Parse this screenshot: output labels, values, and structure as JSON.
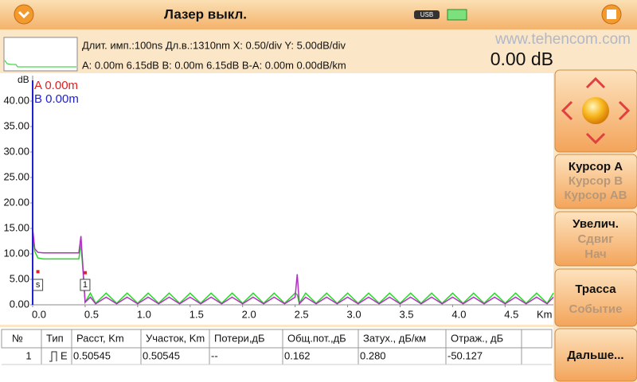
{
  "header": {
    "title": "Лазер выкл.",
    "usb": "USB"
  },
  "watermark": "www.tehencom.com",
  "info": {
    "line1": "Длит. имп.:100ns Дл.в.:1310nm  X: 0.50/div Y: 5.00dB/div",
    "line2": "A: 0.00m 6.15dB B: 0.00m 6.15dB B-A: 0.00m 0.00dB/km",
    "reading": "0.00 dB"
  },
  "chart_data": {
    "type": "line",
    "y_label": "dB",
    "x_label": "Km",
    "xlim": [
      0,
      4.96
    ],
    "ylim": [
      0,
      45
    ],
    "xticks": [
      {
        "value": 0,
        "label": "0.0"
      },
      {
        "value": 0.5,
        "label": "0.5"
      },
      {
        "value": 1,
        "label": "1.0"
      },
      {
        "value": 1.5,
        "label": "1.5"
      },
      {
        "value": 2,
        "label": "2.0"
      },
      {
        "value": 2.5,
        "label": "2.5"
      },
      {
        "value": 3,
        "label": "3.0"
      },
      {
        "value": 3.5,
        "label": "3.5"
      },
      {
        "value": 4,
        "label": "4.0"
      },
      {
        "value": 4.5,
        "label": "4.5"
      }
    ],
    "yticks": [
      {
        "value": 0,
        "label": "0.00"
      },
      {
        "value": 5,
        "label": "5.00"
      },
      {
        "value": 10,
        "label": "10.00"
      },
      {
        "value": 15,
        "label": "15.00"
      },
      {
        "value": 20,
        "label": "20.00"
      },
      {
        "value": 25,
        "label": "25.00"
      },
      {
        "value": 30,
        "label": "30.00"
      },
      {
        "value": 35,
        "label": "35.00"
      },
      {
        "value": 40,
        "label": "40.00"
      }
    ],
    "x": [
      0,
      0.02,
      0.05,
      0.1,
      0.2,
      0.3,
      0.4,
      0.44,
      0.46,
      0.48,
      0.5,
      0.55,
      0.6,
      0.7,
      0.8,
      0.9,
      1.0,
      1.1,
      1.2,
      1.3,
      1.4,
      1.5,
      1.6,
      1.7,
      1.8,
      1.9,
      2.0,
      2.1,
      2.2,
      2.3,
      2.4,
      2.5,
      2.52,
      2.54,
      2.6,
      2.7,
      2.8,
      2.9,
      3.0,
      3.1,
      3.2,
      3.3,
      3.4,
      3.5,
      3.6,
      3.7,
      3.8,
      3.9,
      4.0,
      4.1,
      4.2,
      4.3,
      4.4,
      4.5,
      4.6,
      4.7,
      4.8,
      4.9,
      4.96
    ],
    "series": [
      {
        "color": "#22dd22",
        "values": [
          14,
          10.5,
          9.2,
          9,
          9,
          9,
          9,
          9,
          12,
          6.5,
          0.5,
          2.3,
          0.3,
          2.3,
          0.3,
          2.3,
          0.3,
          2.3,
          0.3,
          2.3,
          0.3,
          2.3,
          0.3,
          2.3,
          0.3,
          2.3,
          0.3,
          2.3,
          0.3,
          2.3,
          0.3,
          2.3,
          2,
          0.3,
          2.3,
          0.3,
          2.3,
          0.3,
          2.3,
          0.3,
          2.3,
          0.3,
          2.3,
          0.3,
          2.3,
          0.3,
          2.3,
          0.3,
          2.3,
          0.3,
          2.3,
          0.3,
          2.3,
          0.3,
          2.3,
          0.3,
          2.3,
          0.3,
          2.3
        ]
      },
      {
        "color": "#b030c0",
        "values": [
          15,
          11,
          10.3,
          10.2,
          10.2,
          10.2,
          10.2,
          10.2,
          13.5,
          7,
          0.5,
          1.5,
          0.2,
          1.5,
          0.2,
          1.5,
          0.2,
          1.5,
          0.2,
          1.5,
          0.2,
          1.5,
          0.2,
          1.5,
          0.2,
          1.5,
          0.2,
          1.5,
          0.2,
          1.5,
          0.2,
          1.5,
          6,
          0.2,
          1.5,
          0.2,
          1.5,
          0.2,
          1.5,
          0.2,
          1.5,
          0.2,
          1.5,
          0.2,
          1.5,
          0.2,
          1.5,
          0.2,
          1.5,
          0.2,
          1.5,
          0.2,
          1.5,
          0.2,
          1.5,
          0.2,
          1.5,
          0.2,
          1.5
        ]
      }
    ],
    "cursors": [
      {
        "name": "A 0.00m",
        "color": "#e02020",
        "x": 0
      },
      {
        "name": "B 0.00m",
        "color": "#2020d0",
        "x": 0
      }
    ],
    "events": [
      {
        "label": "s",
        "x": 0.05,
        "y": 6.5
      },
      {
        "label": "1",
        "x": 0.5,
        "y": 6.3
      }
    ]
  },
  "table": {
    "columns": [
      "№",
      "Тип",
      "Расст, Km",
      "Участок, Km",
      "Потери,дБ",
      "Общ.пот.,дБ",
      "Затух., дБ/км",
      "Отраж., дБ"
    ],
    "rows": [
      [
        "1",
        "E",
        "0.50545",
        "0.50545",
        "--",
        "0.162",
        "0.280",
        "-50.127"
      ]
    ]
  },
  "side": {
    "cursor": [
      "Курсор A",
      "Курсор B",
      "Курсор AB"
    ],
    "zoom": [
      "Увелич.",
      "Сдвиг",
      "Нач"
    ],
    "trace": [
      "Трасса",
      "Событие"
    ],
    "more": "Дальше..."
  }
}
